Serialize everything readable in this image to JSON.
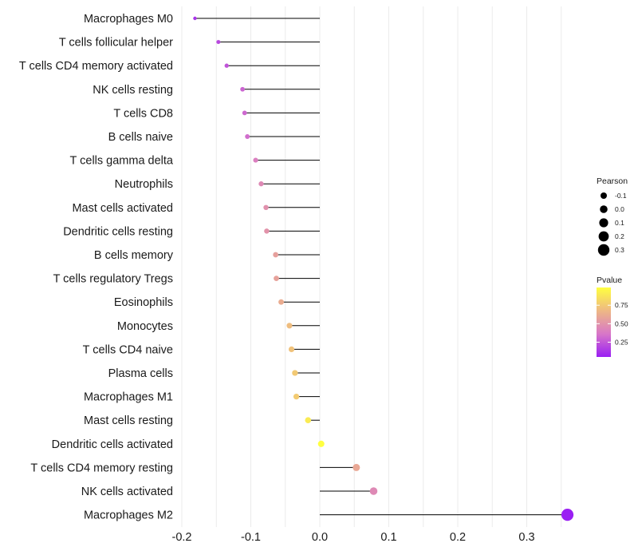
{
  "chart_data": {
    "type": "lollipop",
    "title": "",
    "xlabel": "",
    "ylabel": "",
    "xlim": [
      -0.2,
      0.36
    ],
    "xticks": [
      -0.2,
      -0.1,
      0.0,
      0.1,
      0.2,
      0.3
    ],
    "xtick_labels": [
      "-0.2",
      "-0.1",
      "0.0",
      "0.1",
      "0.2",
      "0.3"
    ],
    "grid": "vertical",
    "baseline": 0,
    "categories": [
      "Macrophages M0",
      "T cells follicular helper",
      "T cells CD4 memory activated",
      "NK cells resting",
      "T cells CD8",
      "B cells naive",
      "T cells gamma delta",
      "Neutrophils",
      "Mast cells activated",
      "Dendritic cells resting",
      "B cells memory",
      "T cells regulatory  Tregs ",
      "Eosinophils",
      "Monocytes",
      "T cells CD4 naive",
      "Plasma cells",
      "Macrophages M1",
      "Mast cells resting",
      "Dendritic cells activated",
      "T cells CD4 memory resting",
      "NK cells activated",
      "Macrophages M2"
    ],
    "pearson": [
      -0.181,
      -0.147,
      -0.135,
      -0.112,
      -0.109,
      -0.105,
      -0.093,
      -0.085,
      -0.078,
      -0.077,
      -0.064,
      -0.063,
      -0.056,
      -0.044,
      -0.041,
      -0.036,
      -0.034,
      -0.017,
      0.002,
      0.053,
      0.078,
      0.359
    ],
    "pvalue": [
      0.12,
      0.2,
      0.24,
      0.3,
      0.31,
      0.33,
      0.4,
      0.45,
      0.49,
      0.5,
      0.56,
      0.57,
      0.62,
      0.7,
      0.72,
      0.75,
      0.76,
      0.9,
      0.99,
      0.6,
      0.45,
      0.05
    ],
    "legend_size": {
      "title": "Pearson",
      "values": [
        -0.1,
        0.0,
        0.1,
        0.2,
        0.3
      ],
      "labels": [
        "-0.1",
        "0.0",
        "0.1",
        "0.2",
        "0.3"
      ]
    },
    "legend_color": {
      "title": "Pvalue",
      "range": [
        0.05,
        0.99
      ],
      "ticks": [
        0.25,
        0.5,
        0.75
      ],
      "labels": [
        "0.25",
        "0.50",
        "0.75"
      ],
      "colors": [
        "#9a1ff3",
        "#d877c8",
        "#eeb884",
        "#ffff40"
      ]
    },
    "stem_color": "#000000",
    "grid_color": "#ebebeb"
  }
}
